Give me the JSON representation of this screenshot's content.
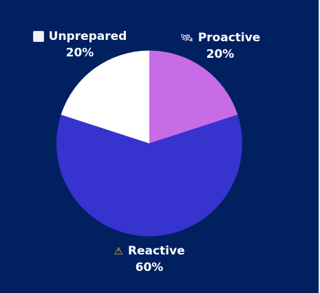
{
  "chart_data": {
    "type": "pie",
    "slices": [
      {
        "label": "Proactive",
        "value": 20,
        "value_label": "20%",
        "color": "#c86be6",
        "icon": "satellite-icon"
      },
      {
        "label": "Reactive",
        "value": 60,
        "value_label": "60%",
        "color": "#3633ce",
        "icon": "warning-icon"
      },
      {
        "label": "Unprepared",
        "value": 20,
        "value_label": "20%",
        "color": "#ffffff",
        "icon": "white-square-icon"
      }
    ],
    "start_angle_deg": 0,
    "direction": "clockwise",
    "background": "#002060"
  }
}
